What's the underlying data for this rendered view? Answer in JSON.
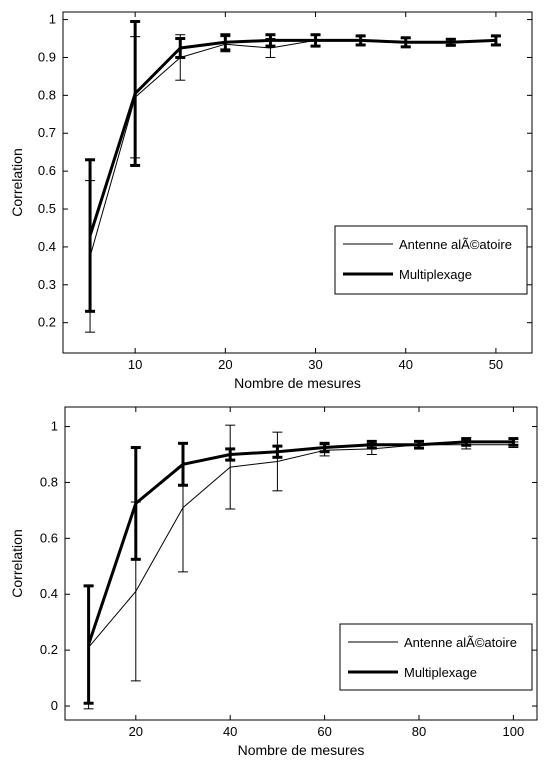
{
  "chart_data": [
    {
      "type": "line",
      "xlabel": "Nombre de mesures",
      "ylabel": "Correlation",
      "xlim": [
        2,
        54
      ],
      "ylim": [
        0.12,
        1.02
      ],
      "xticks": [
        10,
        20,
        30,
        40,
        50
      ],
      "yticks": [
        0.2,
        0.3,
        0.4,
        0.5,
        0.6,
        0.7,
        0.8,
        0.9,
        1
      ],
      "grid": false,
      "legend_position": "lower-right",
      "series": [
        {
          "name": "Antenne alÃ©atoire",
          "color": "#000000",
          "line_weight": "thin",
          "x": [
            5,
            10,
            15,
            20,
            25,
            30,
            35,
            40,
            45,
            50
          ],
          "y": [
            0.375,
            0.795,
            0.9,
            0.935,
            0.925,
            0.945,
            0.945,
            0.94,
            0.94,
            0.945
          ],
          "error": [
            0.2,
            0.16,
            0.06,
            0.02,
            0.025,
            0.015,
            0.01,
            0.01,
            0.008,
            0.01
          ]
        },
        {
          "name": "Multiplexage",
          "color": "#000000",
          "line_weight": "thick",
          "x": [
            5,
            10,
            15,
            20,
            25,
            30,
            35,
            40,
            45,
            50
          ],
          "y": [
            0.43,
            0.805,
            0.925,
            0.94,
            0.945,
            0.945,
            0.945,
            0.94,
            0.94,
            0.945
          ],
          "error": [
            0.2,
            0.19,
            0.025,
            0.02,
            0.015,
            0.015,
            0.012,
            0.012,
            0.008,
            0.012
          ]
        }
      ]
    },
    {
      "type": "line",
      "xlabel": "Nombre de mesures",
      "ylabel": "Correlation",
      "xlim": [
        5,
        105
      ],
      "ylim": [
        -0.05,
        1.07
      ],
      "xticks": [
        20,
        40,
        60,
        80,
        100
      ],
      "yticks": [
        0,
        0.2,
        0.4,
        0.6,
        0.8,
        1
      ],
      "grid": false,
      "legend_position": "lower-right",
      "series": [
        {
          "name": "Antenne alÃ©atoire",
          "color": "#000000",
          "line_weight": "thin",
          "x": [
            10,
            20,
            30,
            40,
            50,
            60,
            70,
            80,
            90,
            100
          ],
          "y": [
            0.21,
            0.41,
            0.71,
            0.855,
            0.875,
            0.915,
            0.92,
            0.935,
            0.935,
            0.935
          ],
          "error": [
            0.22,
            0.32,
            0.23,
            0.15,
            0.105,
            0.02,
            0.02,
            0.01,
            0.015,
            0.01
          ]
        },
        {
          "name": "Multiplexage",
          "color": "#000000",
          "line_weight": "thick",
          "x": [
            10,
            20,
            30,
            40,
            50,
            60,
            70,
            80,
            90,
            100
          ],
          "y": [
            0.22,
            0.725,
            0.865,
            0.9,
            0.91,
            0.925,
            0.935,
            0.935,
            0.945,
            0.945
          ],
          "error": [
            0.21,
            0.2,
            0.075,
            0.02,
            0.02,
            0.015,
            0.012,
            0.012,
            0.012,
            0.012
          ]
        }
      ]
    }
  ]
}
